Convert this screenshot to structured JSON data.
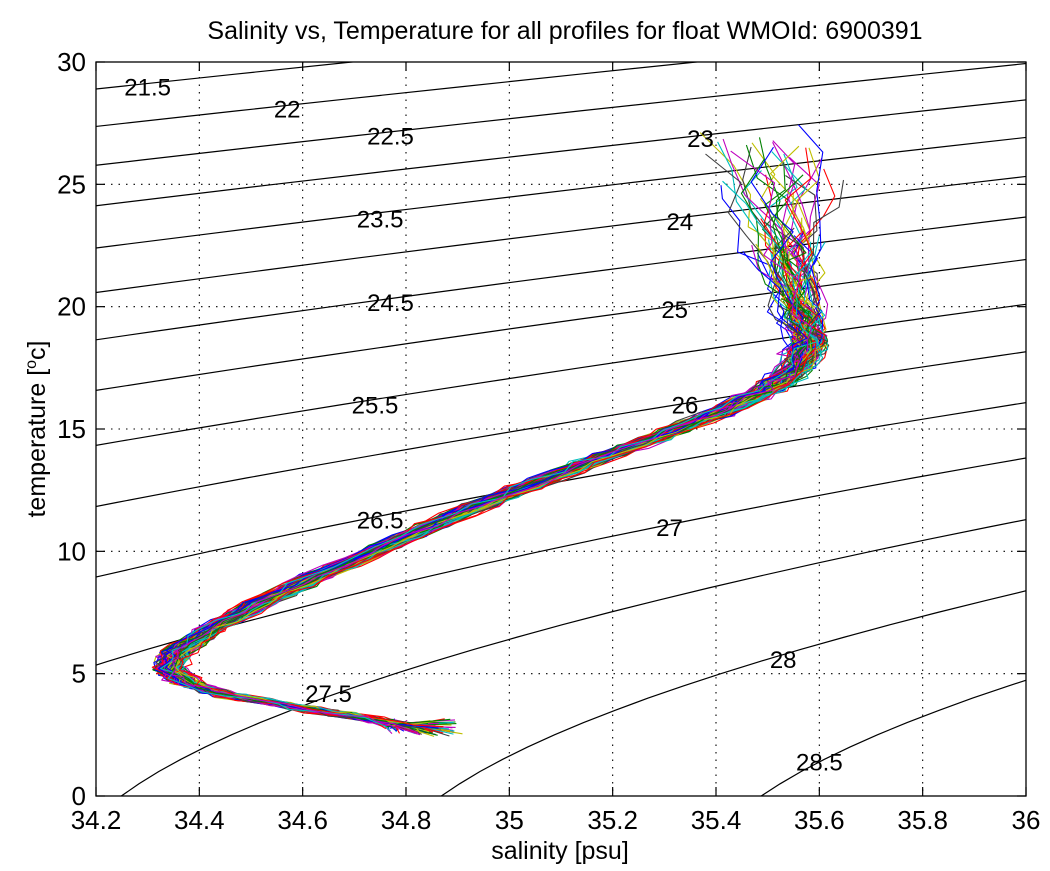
{
  "chart_data": {
    "type": "line",
    "title": "Salinity vs, Temperature for all profiles for float WMOId: 6900391",
    "xlabel": "salinity [psu]",
    "ylabel_main": "temperature [",
    "ylabel_sup": "o",
    "ylabel_end": "c]",
    "xlim": [
      34.2,
      36
    ],
    "ylim": [
      0,
      30
    ],
    "xticks": [
      34.2,
      34.4,
      34.6,
      34.8,
      35,
      35.2,
      35.4,
      35.6,
      35.8,
      36
    ],
    "xtick_labels": [
      "34.2",
      "34.4",
      "34.6",
      "34.8",
      "35",
      "35.2",
      "35.4",
      "35.6",
      "35.8",
      "36"
    ],
    "yticks": [
      0,
      5,
      10,
      15,
      20,
      25,
      30
    ],
    "ytick_labels": [
      "0",
      "5",
      "10",
      "15",
      "20",
      "25",
      "30"
    ],
    "grid": true,
    "series_colors": [
      "#0000ff",
      "#008000",
      "#ff0000",
      "#00bfbf",
      "#bf00bf",
      "#bfbf00",
      "#404040"
    ],
    "profile_count": 110,
    "ts_curve": {
      "salinity": [
        34.82,
        34.72,
        34.6,
        34.46,
        34.38,
        34.34,
        34.36,
        34.42,
        34.52,
        34.63,
        34.76,
        34.9,
        35.03,
        35.15,
        35.28,
        35.4,
        35.5,
        35.56,
        35.58,
        35.56,
        35.54,
        35.52
      ],
      "temperature": [
        2.8,
        3.2,
        3.6,
        4.1,
        4.6,
        5.2,
        5.9,
        6.8,
        7.9,
        9.0,
        10.2,
        11.5,
        12.6,
        13.6,
        14.6,
        15.6,
        16.6,
        17.5,
        18.6,
        20.0,
        22.5,
        25.5
      ]
    },
    "density_contours": [
      {
        "sigma": 21.5,
        "label": "21.5",
        "label_at": [
          34.3,
          29.0
        ]
      },
      {
        "sigma": 22,
        "label": "22",
        "label_at": [
          34.57,
          28.1
        ]
      },
      {
        "sigma": 22.5,
        "label": "22.5",
        "label_at": [
          34.77,
          27.0
        ]
      },
      {
        "sigma": 23,
        "label": "23",
        "label_at": [
          35.37,
          26.9
        ]
      },
      {
        "sigma": 23.5,
        "label": "23.5",
        "label_at": [
          34.75,
          23.6
        ]
      },
      {
        "sigma": 24,
        "label": "24",
        "label_at": [
          35.33,
          23.5
        ]
      },
      {
        "sigma": 24.5,
        "label": "24.5",
        "label_at": [
          34.77,
          20.2
        ]
      },
      {
        "sigma": 25,
        "label": "25",
        "label_at": [
          35.32,
          19.9
        ]
      },
      {
        "sigma": 25.5,
        "label": "25.5",
        "label_at": [
          34.74,
          16.0
        ]
      },
      {
        "sigma": 26,
        "label": "26",
        "label_at": [
          35.34,
          16.0
        ]
      },
      {
        "sigma": 26.5,
        "label": "26.5",
        "label_at": [
          34.75,
          11.3
        ]
      },
      {
        "sigma": 27,
        "label": "27",
        "label_at": [
          35.31,
          11.0
        ]
      },
      {
        "sigma": 27.5,
        "label": "27.5",
        "label_at": [
          34.65,
          4.2
        ]
      },
      {
        "sigma": 28,
        "label": "28",
        "label_at": [
          35.53,
          5.6
        ]
      },
      {
        "sigma": 28.5,
        "label": "28.5",
        "label_at": [
          35.6,
          1.4
        ]
      }
    ]
  }
}
